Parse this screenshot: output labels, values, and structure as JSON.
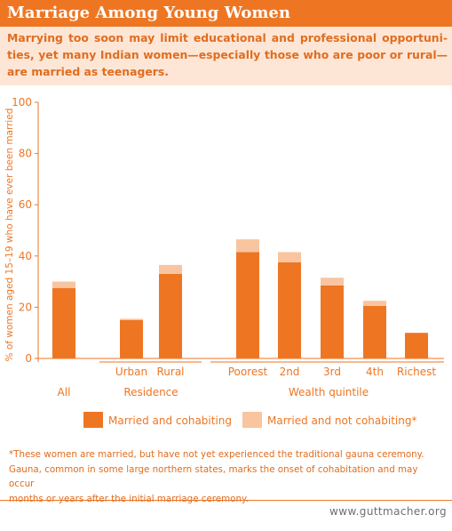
{
  "header": {
    "title": "Marriage Among Young Women",
    "subtitle": "Marrying too soon may limit educational and professional opportuni- ties, yet many Indian women—especially those who are poor or rural— are married as teenagers."
  },
  "colors": {
    "accent": "#ee7623",
    "married_and_cohabiting": "#ee7623",
    "married_not_cohabiting": "#f9c4a0",
    "subtitle_background": "#fde6d6"
  },
  "chart_data": {
    "type": "bar",
    "stacked": true,
    "ylabel": "% of women aged 15–19 who have ever been married",
    "ylim": [
      0,
      100
    ],
    "yticks": [
      0,
      20,
      40,
      60,
      80,
      100
    ],
    "grid": false,
    "legend_position": "bottom",
    "categories": [
      "All",
      "Urban",
      "Rural",
      "Poorest",
      "2nd",
      "3rd",
      "4th",
      "Richest"
    ],
    "groups": [
      {
        "label": "",
        "categories": [
          "All"
        ]
      },
      {
        "label": "Residence",
        "categories": [
          "Urban",
          "Rural"
        ]
      },
      {
        "label": "Wealth quintile",
        "categories": [
          "Poorest",
          "2nd",
          "3rd",
          "4th",
          "Richest"
        ]
      }
    ],
    "series": [
      {
        "name": "Married and cohabiting",
        "values": [
          27.5,
          15,
          33,
          41.5,
          37.5,
          28.5,
          20.5,
          10
        ]
      },
      {
        "name": "Married and not cohabiting*",
        "values": [
          2.5,
          0.5,
          3.5,
          5,
          4,
          3,
          2,
          0
        ]
      }
    ]
  },
  "footnote": {
    "lines": [
      "*These women are married, but have not yet experienced the traditional gauna ceremony.",
      "Gauna, common in some large northern states, marks the onset of cohabitation and may occur",
      "months or years after the initial marriage ceremony."
    ]
  },
  "footer": {
    "url": "www.guttmacher.org"
  }
}
